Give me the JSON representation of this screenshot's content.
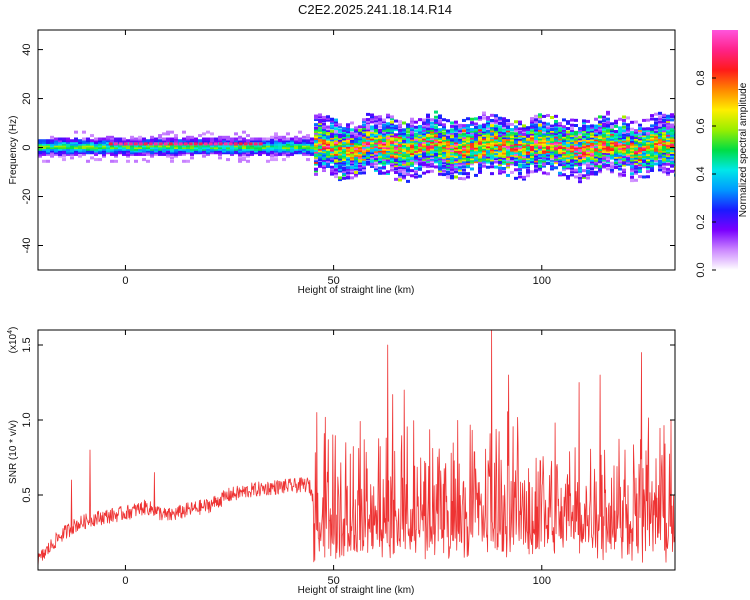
{
  "title": "C2E2.2025.241.18.14.R14",
  "chart_data": [
    {
      "type": "heatmap",
      "xlabel": "Height of straight line (km)",
      "ylabel": "Frequency (Hz)",
      "xlim": [
        -21,
        132
      ],
      "ylim": [
        -50,
        48
      ],
      "xticks": [
        0,
        50,
        100
      ],
      "yticks": [
        40,
        20,
        0,
        -20,
        -40
      ],
      "ytick_labels": [
        "40",
        "20",
        "0",
        "-20",
        "-40"
      ],
      "colorbar": {
        "label": "Normalized spectral amplitude",
        "range": [
          0,
          1
        ],
        "ticks": [
          "0.0",
          "0.2",
          "0.4",
          "0.6",
          "0.8"
        ],
        "tick_values": [
          0,
          0.2,
          0.4,
          0.6,
          0.8
        ],
        "colors": [
          "#ffffff",
          "#cc88ff",
          "#7a00ff",
          "#1a1aff",
          "#0099ff",
          "#00e8e8",
          "#00dd44",
          "#99ee00",
          "#ffee00",
          "#ff8800",
          "#ff1a1a",
          "#ff2288",
          "#ff55dd"
        ]
      },
      "band": {
        "center_freq_hz": 1,
        "smooth_region_km": [
          -21,
          45
        ],
        "smooth_half_width_hz": 4,
        "noisy_region_km": [
          45,
          132
        ],
        "noisy_half_width_hz": 10,
        "strong_line_km": [
          -4,
          32
        ],
        "strong_line_freq_hz": 1.5
      }
    },
    {
      "type": "line",
      "xlabel": "Height of straight line (km)",
      "ylabel": "SNR (10 * v/v)",
      "y_multiplier": "(x10",
      "y_multiplier_exp": "4",
      "y_multiplier_close": ")",
      "xlim": [
        -21,
        132
      ],
      "ylim": [
        0,
        1.6
      ],
      "xticks": [
        0,
        50,
        100
      ],
      "yticks": [
        0.5,
        1.0,
        1.5
      ],
      "ytick_labels": [
        "0.5",
        "1.0",
        "1.5"
      ],
      "series": [
        {
          "color": "#ee3333",
          "anchors": [
            [
              -21,
              0.06
            ],
            [
              -16,
              0.22
            ],
            [
              -12,
              0.3
            ],
            [
              -8,
              0.34
            ],
            [
              -4,
              0.36
            ],
            [
              0,
              0.38
            ],
            [
              5,
              0.42
            ],
            [
              10,
              0.36
            ],
            [
              15,
              0.4
            ],
            [
              20,
              0.43
            ],
            [
              25,
              0.5
            ],
            [
              30,
              0.53
            ],
            [
              35,
              0.55
            ],
            [
              40,
              0.56
            ],
            [
              44,
              0.57
            ],
            [
              45,
              0.5
            ],
            [
              132,
              0.5
            ]
          ],
          "peaks": [
            [
              -13,
              0.6
            ],
            [
              -8.5,
              0.8
            ],
            [
              7,
              0.65
            ],
            [
              46,
              1.05
            ],
            [
              63,
              1.5
            ],
            [
              67,
              1.2
            ],
            [
              88,
              1.6
            ],
            [
              92,
              1.3
            ],
            [
              109,
              1.25
            ],
            [
              114,
              1.3
            ],
            [
              124,
              1.45
            ],
            [
              131,
              1.0
            ]
          ]
        }
      ]
    }
  ]
}
